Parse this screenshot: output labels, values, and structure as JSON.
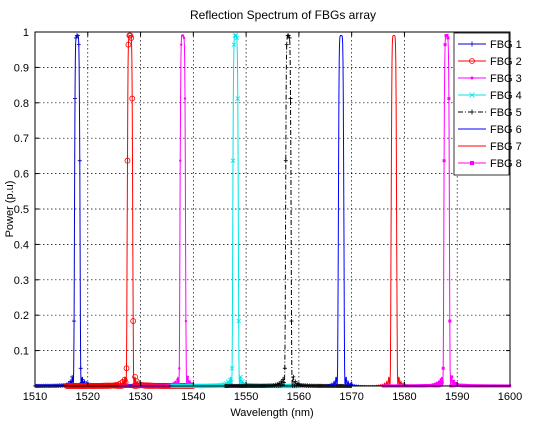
{
  "chart_data": {
    "type": "line",
    "title": "Reflection Spectrum of FBGs array",
    "xlabel": "Wavelength (nm)",
    "ylabel": "Power (p.u)",
    "xlim": [
      1510,
      1600
    ],
    "ylim": [
      0,
      1
    ],
    "xticks": [
      1510,
      1520,
      1530,
      1540,
      1550,
      1560,
      1570,
      1580,
      1590,
      1600
    ],
    "yticks": [
      0.1,
      0.2,
      0.3,
      0.4,
      0.5,
      0.6,
      0.7,
      0.8,
      0.9,
      1
    ],
    "grid": "dotted, both axes",
    "legend_position": "top-right",
    "series": [
      {
        "name": "FBG 1",
        "center_nm": 1518,
        "peak": 0.99,
        "color": "#0000cc",
        "marker": "+",
        "line": "solid"
      },
      {
        "name": "FBG 2",
        "center_nm": 1528,
        "peak": 0.99,
        "color": "#ff0000",
        "marker": "o",
        "line": "solid"
      },
      {
        "name": "FBG 3",
        "center_nm": 1538,
        "peak": 0.99,
        "color": "#ff00ff",
        "marker": "point",
        "line": "solid"
      },
      {
        "name": "FBG 4",
        "center_nm": 1548,
        "peak": 0.99,
        "color": "#00e5e5",
        "marker": "x",
        "line": "solid"
      },
      {
        "name": "FBG 5",
        "center_nm": 1558,
        "peak": 0.99,
        "color": "#000000",
        "marker": "+",
        "line": "dash-dot"
      },
      {
        "name": "FBG 6",
        "center_nm": 1568,
        "peak": 0.99,
        "color": "#0000ff",
        "marker": "none",
        "line": "solid"
      },
      {
        "name": "FBG 7",
        "center_nm": 1578,
        "peak": 0.99,
        "color": "#ff0000",
        "marker": "none",
        "line": "solid"
      },
      {
        "name": "FBG 8",
        "center_nm": 1588,
        "peak": 0.99,
        "color": "#ff00ff",
        "marker": "square",
        "line": "solid"
      }
    ]
  }
}
